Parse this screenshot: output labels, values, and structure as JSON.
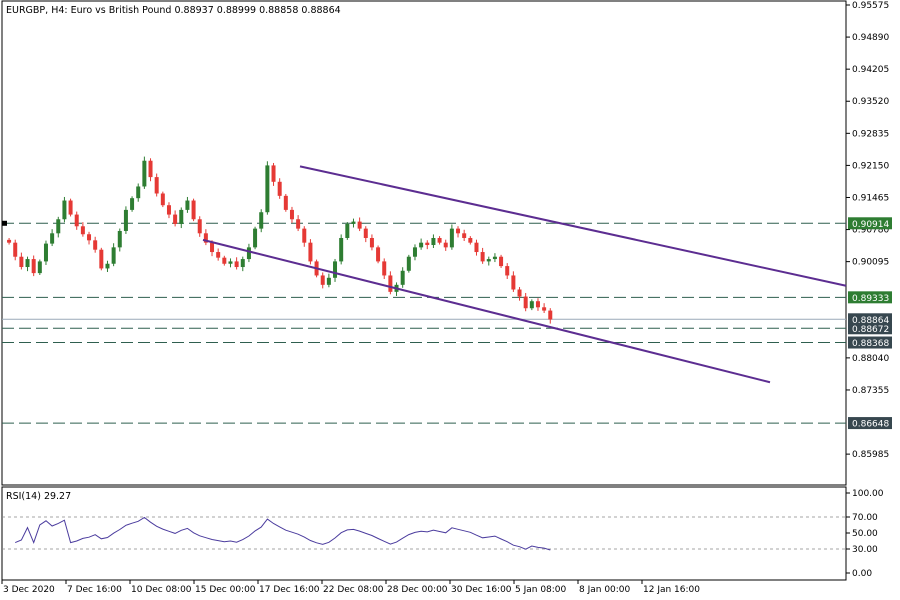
{
  "chart_data": {
    "type": "candlestick",
    "symbol_header": "EURGBP, H4:  Euro vs British Pound  0.88937 0.88999 0.88858 0.88864",
    "price_axis": {
      "range": [
        0.855,
        0.9586
      ],
      "ticks": [
        "0.95575",
        "0.94890",
        "0.94205",
        "0.93520",
        "0.92835",
        "0.92150",
        "0.91465",
        "0.90780",
        "0.90095",
        "0.88040",
        "0.87355",
        "0.85985"
      ]
    },
    "time_axis": {
      "labels": [
        "3 Dec 2020",
        "7 Dec 16:00",
        "10 Dec 08:00",
        "15 Dec 00:00",
        "17 Dec 16:00",
        "22 Dec 08:00",
        "28 Dec 00:00",
        "30 Dec 16:00",
        "5 Jan 08:00",
        "8 Jan 00:00",
        "12 Jan 16:00"
      ]
    },
    "horizontal_levels": [
      {
        "price": 0.90914,
        "label": "0.90914",
        "style": "dashed",
        "label_color": "#2e7d32"
      },
      {
        "price": 0.89333,
        "label": "0.89333",
        "style": "dashed",
        "label_color": "#2e7d32"
      },
      {
        "price": 0.88672,
        "label": "0.88672",
        "style": "dashed",
        "label_color": "#37474f"
      },
      {
        "price": 0.88368,
        "label": "0.88368",
        "style": "dashed",
        "label_color": "#37474f"
      },
      {
        "price": 0.86648,
        "label": "0.86648",
        "style": "dashed",
        "label_color": "#37474f"
      }
    ],
    "current_price": {
      "price": 0.88864,
      "label": "0.88864"
    },
    "trend_channel": {
      "upper": [
        [
          "17 Dec 16:00",
          0.9213
        ],
        [
          "15 Jan",
          0.896
        ]
      ],
      "lower": [
        [
          "15 Dec 00:00",
          0.9056
        ],
        [
          "14 Jan",
          0.8755
        ]
      ]
    },
    "closes": [
      0.905,
      0.902,
      0.8998,
      0.9015,
      0.8985,
      0.901,
      0.9048,
      0.907,
      0.91,
      0.914,
      0.911,
      0.9085,
      0.9068,
      0.9055,
      0.9035,
      0.8995,
      0.9005,
      0.904,
      0.9075,
      0.912,
      0.9145,
      0.917,
      0.9225,
      0.919,
      0.9155,
      0.913,
      0.911,
      0.909,
      0.912,
      0.914,
      0.91,
      0.907,
      0.905,
      0.903,
      0.9018,
      0.9005,
      0.901,
      0.8998,
      0.9015,
      0.904,
      0.908,
      0.9115,
      0.9215,
      0.918,
      0.915,
      0.912,
      0.91,
      0.908,
      0.905,
      0.901,
      0.898,
      0.896,
      0.8975,
      0.901,
      0.906,
      0.909,
      0.9095,
      0.908,
      0.906,
      0.904,
      0.901,
      0.898,
      0.8945,
      0.896,
      0.899,
      0.902,
      0.904,
      0.905,
      0.9045,
      0.906,
      0.905,
      0.904,
      0.908,
      0.907,
      0.906,
      0.905,
      0.903,
      0.901,
      0.9015,
      0.902,
      0.9,
      0.898,
      0.895,
      0.8935,
      0.891,
      0.8925,
      0.8912,
      0.8905,
      0.8886
    ],
    "rsi": {
      "label": "RSI(14) 29.27",
      "range": [
        0,
        100
      ],
      "ticks": [
        "100.00",
        "70.00",
        "50.00",
        "30.00",
        "0.00"
      ],
      "levels": [
        70,
        30
      ]
    },
    "colors": {
      "bull": "#2e7d32",
      "bear": "#e53935",
      "channel": "#5c2d91",
      "level_line": "#2f5f4f",
      "grid": "#888888",
      "rsi_line": "#4b3c9e"
    }
  }
}
